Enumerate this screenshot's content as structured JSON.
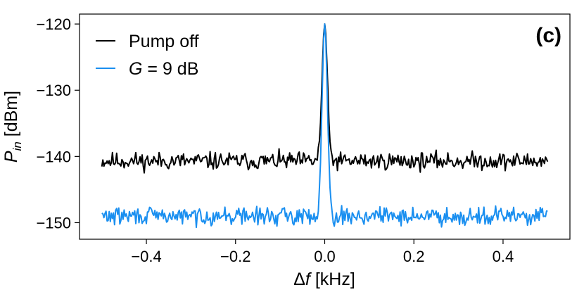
{
  "chart_data": {
    "type": "line",
    "panel_label": "(c)",
    "xlabel": "Δf [kHz]",
    "xlabel_parts": {
      "delta": "Δ",
      "var": "f",
      "unit": " [kHz]"
    },
    "ylabel": "P_in [dBm]",
    "ylabel_parts": {
      "var": "P",
      "sub": "in",
      "unit": " [dBm]"
    },
    "xlim": [
      -0.55,
      0.55
    ],
    "ylim": [
      -152.5,
      -118.5
    ],
    "xticks": [
      -0.4,
      -0.2,
      0.0,
      0.2,
      0.4
    ],
    "xtick_labels": [
      "−0.4",
      "−0.2",
      "0.0",
      "0.2",
      "0.4"
    ],
    "yticks": [
      -150,
      -140,
      -130,
      -120
    ],
    "ytick_labels": [
      "−150",
      "−140",
      "−130",
      "−120"
    ],
    "grid": false,
    "legend_position": "top-left",
    "series": [
      {
        "name": "Pump off",
        "color": "#000000",
        "x_range": [
          -0.5,
          0.5
        ],
        "baseline": -140.7,
        "noise_amplitude": 1.3,
        "peak": {
          "x": 0.0,
          "y": -120.0,
          "width": 0.006
        },
        "seed": 11
      },
      {
        "name": "G = 9 dB",
        "name_parts": {
          "var": "G",
          "rest": " = 9 dB"
        },
        "color": "#1a8ff0",
        "x_range": [
          -0.5,
          0.5
        ],
        "baseline": -149.0,
        "noise_amplitude": 1.3,
        "peak": {
          "x": 0.0,
          "y": -120.0,
          "width": 0.006
        },
        "seed": 29
      }
    ]
  }
}
